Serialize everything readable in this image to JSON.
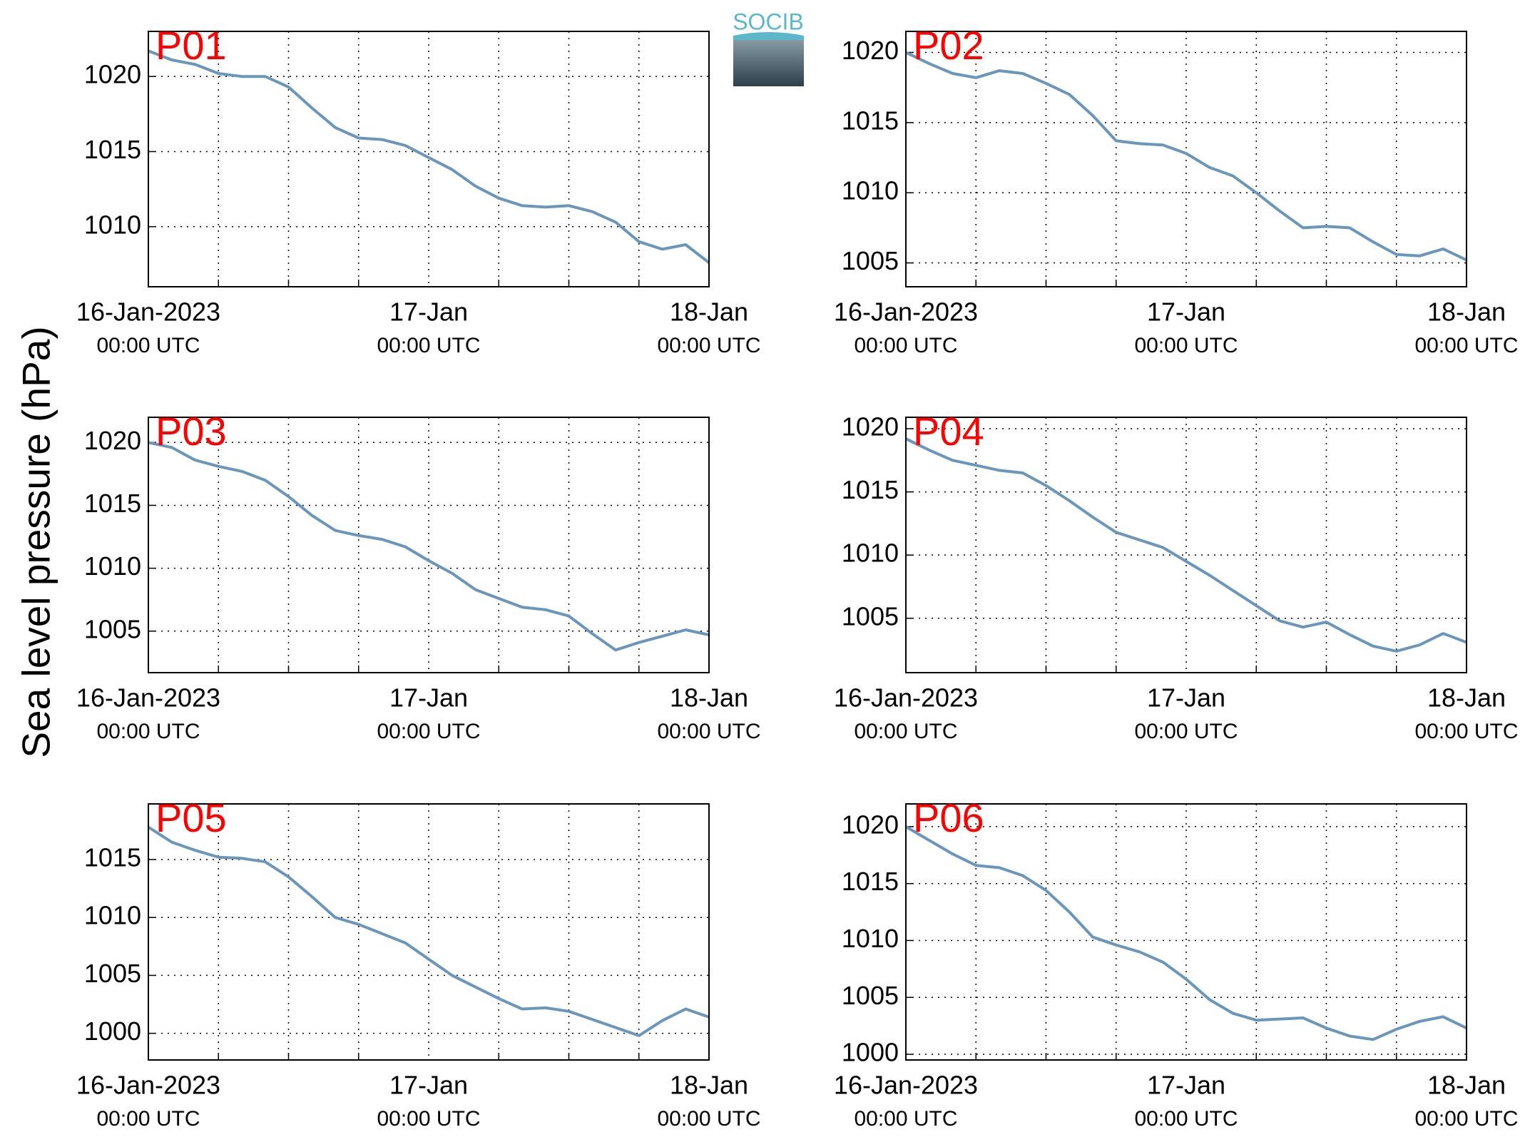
{
  "ylabel": "Sea level pressure (hPa)",
  "logo": "SOCIB",
  "chart_data": [
    {
      "type": "line",
      "title": "P01",
      "x": [
        0,
        2,
        4,
        6,
        8,
        10,
        12,
        14,
        16,
        18,
        20,
        22,
        24,
        26,
        28,
        30,
        32,
        34,
        36,
        38,
        40,
        42,
        44,
        46,
        48
      ],
      "series": [
        {
          "color": "#6a96bd",
          "values": [
            1021.7,
            1021.1,
            1020.8,
            1020.2,
            1020.0,
            1020.0,
            1019.3,
            1017.9,
            1016.6,
            1015.9,
            1015.8,
            1015.4,
            1014.6,
            1013.8,
            1012.7,
            1011.9,
            1011.4,
            1011.3,
            1011.4,
            1011.0,
            1010.3,
            1009.0,
            1008.5,
            1008.8,
            1007.6
          ]
        }
      ],
      "xlim": [
        0,
        48
      ],
      "ylim": [
        1006,
        1023
      ],
      "yticks": [
        1010,
        1015,
        1020
      ],
      "xticks": [
        {
          "value": 0,
          "label": "16-Jan-2023",
          "sublabel": "00:00 UTC"
        },
        {
          "value": 24,
          "label": "17-Jan",
          "sublabel": "00:00 UTC"
        },
        {
          "value": 48,
          "label": "18-Jan",
          "sublabel": "00:00 UTC"
        }
      ],
      "xminor": [
        6,
        12,
        18,
        30,
        36,
        42
      ],
      "grid": true
    },
    {
      "type": "line",
      "title": "P02",
      "x": [
        0,
        2,
        4,
        6,
        8,
        10,
        12,
        14,
        16,
        18,
        20,
        22,
        24,
        26,
        28,
        30,
        32,
        34,
        36,
        38,
        40,
        42,
        44,
        46,
        48
      ],
      "series": [
        {
          "color": "#6a96bd",
          "values": [
            1020.0,
            1019.2,
            1018.5,
            1018.2,
            1018.7,
            1018.5,
            1017.8,
            1017.0,
            1015.5,
            1013.7,
            1013.5,
            1013.4,
            1012.8,
            1011.8,
            1011.2,
            1010.0,
            1008.7,
            1007.5,
            1007.6,
            1007.5,
            1006.5,
            1005.6,
            1005.5,
            1006.0,
            1005.2
          ]
        }
      ],
      "xlim": [
        0,
        48
      ],
      "ylim": [
        1003.3,
        1021.5
      ],
      "yticks": [
        1005,
        1010,
        1015,
        1020
      ],
      "xticks": [
        {
          "value": 0,
          "label": "16-Jan-2023",
          "sublabel": "00:00 UTC"
        },
        {
          "value": 24,
          "label": "17-Jan",
          "sublabel": "00:00 UTC"
        },
        {
          "value": 48,
          "label": "18-Jan",
          "sublabel": "00:00 UTC"
        }
      ],
      "xminor": [
        6,
        12,
        18,
        30,
        36,
        42
      ],
      "grid": true
    },
    {
      "type": "line",
      "title": "P03",
      "x": [
        0,
        2,
        4,
        6,
        8,
        10,
        12,
        14,
        16,
        18,
        20,
        22,
        24,
        26,
        28,
        30,
        32,
        34,
        36,
        38,
        40,
        42,
        44,
        46,
        48
      ],
      "series": [
        {
          "color": "#6a96bd",
          "values": [
            1020.0,
            1019.6,
            1018.6,
            1018.1,
            1017.7,
            1017.0,
            1015.7,
            1014.2,
            1013.0,
            1012.6,
            1012.3,
            1011.7,
            1010.6,
            1009.6,
            1008.3,
            1007.6,
            1006.9,
            1006.7,
            1006.2,
            1004.8,
            1003.5,
            1004.1,
            1004.6,
            1005.1,
            1004.7
          ]
        }
      ],
      "xlim": [
        0,
        48
      ],
      "ylim": [
        1001.7,
        1022
      ],
      "yticks": [
        1005,
        1010,
        1015,
        1020
      ],
      "xticks": [
        {
          "value": 0,
          "label": "16-Jan-2023",
          "sublabel": "00:00 UTC"
        },
        {
          "value": 24,
          "label": "17-Jan",
          "sublabel": "00:00 UTC"
        },
        {
          "value": 48,
          "label": "18-Jan",
          "sublabel": "00:00 UTC"
        }
      ],
      "xminor": [
        6,
        12,
        18,
        30,
        36,
        42
      ],
      "grid": true
    },
    {
      "type": "line",
      "title": "P04",
      "x": [
        0,
        2,
        4,
        6,
        8,
        10,
        12,
        14,
        16,
        18,
        20,
        22,
        24,
        26,
        28,
        30,
        32,
        34,
        36,
        38,
        40,
        42,
        44,
        46,
        48
      ],
      "series": [
        {
          "color": "#6a96bd",
          "values": [
            1019.2,
            1018.3,
            1017.5,
            1017.1,
            1016.7,
            1016.5,
            1015.5,
            1014.3,
            1013.0,
            1011.8,
            1011.2,
            1010.6,
            1009.5,
            1008.4,
            1007.2,
            1006.0,
            1004.8,
            1004.3,
            1004.7,
            1003.7,
            1002.8,
            1002.4,
            1002.9,
            1003.8,
            1003.1
          ]
        }
      ],
      "xlim": [
        0,
        48
      ],
      "ylim": [
        1000.7,
        1020.9
      ],
      "yticks": [
        1005,
        1010,
        1015,
        1020
      ],
      "xticks": [
        {
          "value": 0,
          "label": "16-Jan-2023",
          "sublabel": "00:00 UTC"
        },
        {
          "value": 24,
          "label": "17-Jan",
          "sublabel": "00:00 UTC"
        },
        {
          "value": 48,
          "label": "18-Jan",
          "sublabel": "00:00 UTC"
        }
      ],
      "xminor": [
        6,
        12,
        18,
        30,
        36,
        42
      ],
      "grid": true
    },
    {
      "type": "line",
      "title": "P05",
      "x": [
        0,
        2,
        4,
        6,
        8,
        10,
        12,
        14,
        16,
        18,
        20,
        22,
        24,
        26,
        28,
        30,
        32,
        34,
        36,
        38,
        40,
        42,
        44,
        46,
        48
      ],
      "series": [
        {
          "color": "#6a96bd",
          "values": [
            1017.8,
            1016.5,
            1015.8,
            1015.2,
            1015.1,
            1014.8,
            1013.5,
            1011.8,
            1010.0,
            1009.4,
            1008.6,
            1007.8,
            1006.4,
            1005.0,
            1004.0,
            1003.0,
            1002.1,
            1002.2,
            1001.9,
            1001.2,
            1000.5,
            999.8,
            1001.1,
            1002.1,
            1001.4
          ]
        }
      ],
      "xlim": [
        0,
        48
      ],
      "ylim": [
        997.7,
        1019.8
      ],
      "yticks": [
        1000,
        1005,
        1010,
        1015
      ],
      "xticks": [
        {
          "value": 0,
          "label": "16-Jan-2023",
          "sublabel": "00:00 UTC"
        },
        {
          "value": 24,
          "label": "17-Jan",
          "sublabel": "00:00 UTC"
        },
        {
          "value": 48,
          "label": "18-Jan",
          "sublabel": "00:00 UTC"
        }
      ],
      "xminor": [
        6,
        12,
        18,
        30,
        36,
        42
      ],
      "grid": true
    },
    {
      "type": "line",
      "title": "P06",
      "x": [
        0,
        2,
        4,
        6,
        8,
        10,
        12,
        14,
        16,
        18,
        20,
        22,
        24,
        26,
        28,
        30,
        32,
        34,
        36,
        38,
        40,
        42,
        44,
        46,
        48
      ],
      "series": [
        {
          "color": "#6a96bd",
          "values": [
            1020.0,
            1018.8,
            1017.6,
            1016.6,
            1016.4,
            1015.7,
            1014.4,
            1012.5,
            1010.3,
            1009.6,
            1009.0,
            1008.1,
            1006.6,
            1004.8,
            1003.6,
            1003.0,
            1003.1,
            1003.2,
            1002.3,
            1001.6,
            1001.3,
            1002.2,
            1002.9,
            1003.3,
            1002.3
          ]
        }
      ],
      "xlim": [
        0,
        48
      ],
      "ylim": [
        999.5,
        1022
      ],
      "yticks": [
        1000,
        1005,
        1010,
        1015,
        1020
      ],
      "xticks": [
        {
          "value": 0,
          "label": "16-Jan-2023",
          "sublabel": "00:00 UTC"
        },
        {
          "value": 24,
          "label": "17-Jan",
          "sublabel": "00:00 UTC"
        },
        {
          "value": 48,
          "label": "18-Jan",
          "sublabel": "00:00 UTC"
        }
      ],
      "xminor": [
        6,
        12,
        18,
        30,
        36,
        42
      ],
      "grid": true
    }
  ]
}
